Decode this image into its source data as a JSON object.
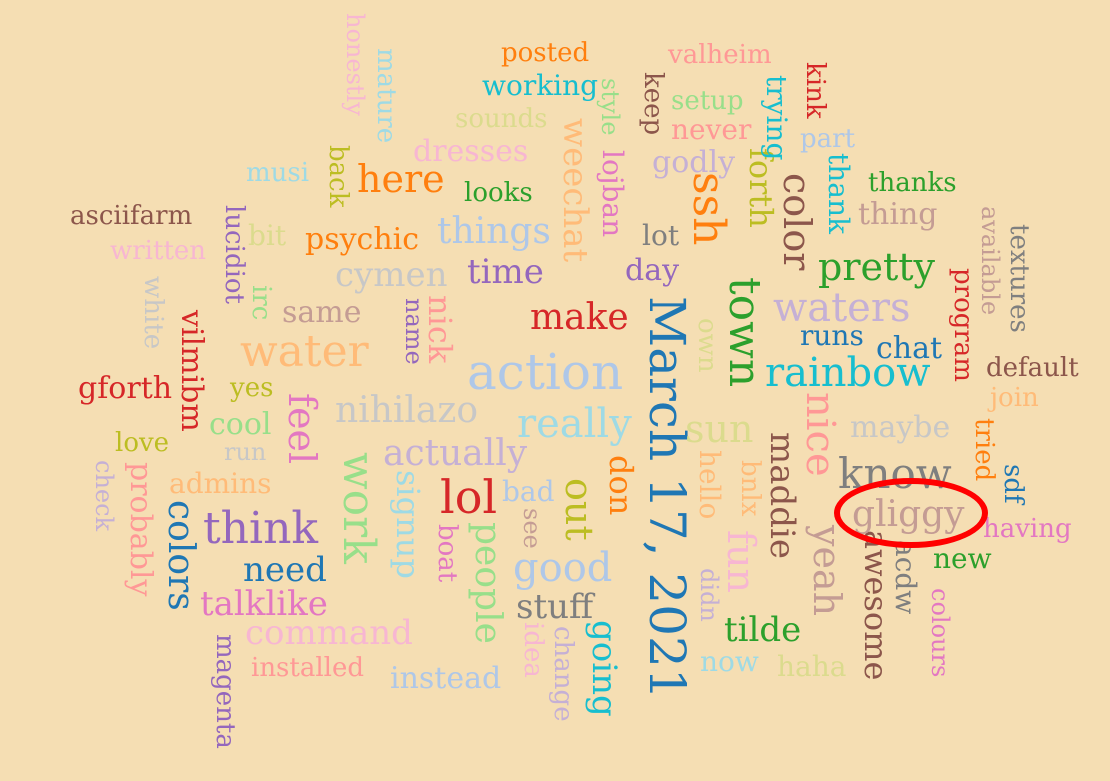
{
  "words": [
    {
      "id": "march-17-2021",
      "text": "March 17, 2021",
      "color": "#1f77b4"
    },
    {
      "id": "action",
      "text": "action",
      "color": "#aec7e8"
    },
    {
      "id": "water",
      "text": "water",
      "color": "#ffbb78"
    },
    {
      "id": "town",
      "text": "town",
      "color": "#2ca02c"
    },
    {
      "id": "rainbow",
      "text": "rainbow",
      "color": "#17becf"
    },
    {
      "id": "waters",
      "text": "waters",
      "color": "#c5b0d5"
    },
    {
      "id": "lol",
      "text": "lol",
      "color": "#d62728"
    },
    {
      "id": "think",
      "text": "think",
      "color": "#9467bd"
    },
    {
      "id": "nihilazo",
      "text": "nihilazo",
      "color": "#c7c7c7"
    },
    {
      "id": "really",
      "text": "really",
      "color": "#9edae5"
    },
    {
      "id": "work",
      "text": "work",
      "color": "#98df8a"
    },
    {
      "id": "nice",
      "text": "nice",
      "color": "#ff9896"
    },
    {
      "id": "know",
      "text": "know",
      "color": "#7f7f7f"
    },
    {
      "id": "ssh",
      "text": "ssh",
      "color": "#ff7f0e"
    },
    {
      "id": "color",
      "text": "color",
      "color": "#8c564b"
    },
    {
      "id": "pretty",
      "text": "pretty",
      "color": "#2ca02c"
    },
    {
      "id": "colors",
      "text": "colors",
      "color": "#1f77b4"
    },
    {
      "id": "good",
      "text": "good",
      "color": "#aec7e8"
    },
    {
      "id": "make",
      "text": "make",
      "color": "#d62728"
    },
    {
      "id": "time",
      "text": "time",
      "color": "#9467bd"
    },
    {
      "id": "here",
      "text": "here",
      "color": "#ff7f0e"
    },
    {
      "id": "yeah",
      "text": "yeah",
      "color": "#c49c94"
    },
    {
      "id": "weechat",
      "text": "weechat",
      "color": "#ffbb78"
    },
    {
      "id": "feel",
      "text": "feel",
      "color": "#e377c2"
    },
    {
      "id": "actually",
      "text": "actually",
      "color": "#c5b0d5"
    },
    {
      "id": "things",
      "text": "things",
      "color": "#aec7e8"
    },
    {
      "id": "cymen",
      "text": "cymen",
      "color": "#c7c7c7"
    },
    {
      "id": "sun",
      "text": "sun",
      "color": "#dbdb8d"
    },
    {
      "id": "maddie",
      "text": "maddie",
      "color": "#8c564b"
    },
    {
      "id": "forth",
      "text": "forth",
      "color": "#bcbd22"
    },
    {
      "id": "out",
      "text": "out",
      "color": "#bcbd22"
    },
    {
      "id": "command",
      "text": "command",
      "color": "#f7b6d2"
    },
    {
      "id": "talklike",
      "text": "talklike",
      "color": "#e377c2"
    },
    {
      "id": "need",
      "text": "need",
      "color": "#1f77b4"
    },
    {
      "id": "stuff",
      "text": "stuff",
      "color": "#7f7f7f"
    },
    {
      "id": "people",
      "text": "people",
      "color": "#98df8a"
    },
    {
      "id": "fun",
      "text": "fun",
      "color": "#f7b6d2"
    },
    {
      "id": "tilde",
      "text": "tilde",
      "color": "#2ca02c"
    },
    {
      "id": "signup",
      "text": "signup",
      "color": "#9edae5"
    },
    {
      "id": "going",
      "text": "going",
      "color": "#17becf"
    },
    {
      "id": "awesome",
      "text": "awesome",
      "color": "#8c564b"
    },
    {
      "id": "gliggy",
      "text": "gliggy",
      "color": "#c49c94"
    },
    {
      "id": "nick",
      "text": "nick",
      "color": "#ff9896"
    },
    {
      "id": "don",
      "text": "don",
      "color": "#ff7f0e"
    },
    {
      "id": "vilmibm",
      "text": "vilmibm",
      "color": "#d62728"
    },
    {
      "id": "gforth",
      "text": "gforth",
      "color": "#d62728"
    },
    {
      "id": "probably",
      "text": "probably",
      "color": "#ff9896"
    },
    {
      "id": "psychic",
      "text": "psychic",
      "color": "#ff7f0e"
    },
    {
      "id": "dresses",
      "text": "dresses",
      "color": "#f7b6d2"
    },
    {
      "id": "godly",
      "text": "godly",
      "color": "#c5b0d5"
    },
    {
      "id": "same",
      "text": "same",
      "color": "#c49c94"
    },
    {
      "id": "cool",
      "text": "cool",
      "color": "#98df8a"
    },
    {
      "id": "maybe",
      "text": "maybe",
      "color": "#c7c7c7"
    },
    {
      "id": "chat",
      "text": "chat",
      "color": "#1f77b4"
    },
    {
      "id": "runs",
      "text": "runs",
      "color": "#1f77b4"
    },
    {
      "id": "hello",
      "text": "hello",
      "color": "#ffbb78"
    },
    {
      "id": "lojban",
      "text": "lojban",
      "color": "#e377c2"
    },
    {
      "id": "day",
      "text": "day",
      "color": "#9467bd"
    },
    {
      "id": "lot",
      "text": "lot",
      "color": "#7f7f7f"
    },
    {
      "id": "thing",
      "text": "thing",
      "color": "#c49c94"
    },
    {
      "id": "thank",
      "text": "thank",
      "color": "#17becf"
    },
    {
      "id": "trying",
      "text": "trying",
      "color": "#17becf"
    },
    {
      "id": "instead",
      "text": "instead",
      "color": "#aec7e8"
    },
    {
      "id": "asciifarm",
      "text": "asciifarm",
      "color": "#8c564b"
    },
    {
      "id": "lucidiot",
      "text": "lucidiot",
      "color": "#9467bd"
    },
    {
      "id": "acdw",
      "text": "acdw",
      "color": "#7f7f7f"
    },
    {
      "id": "thanks",
      "text": "thanks",
      "color": "#2ca02c"
    },
    {
      "id": "default",
      "text": "default",
      "color": "#8c564b"
    },
    {
      "id": "program",
      "text": "program",
      "color": "#d62728"
    },
    {
      "id": "tried",
      "text": "tried",
      "color": "#ff7f0e"
    },
    {
      "id": "new",
      "text": "new",
      "color": "#2ca02c"
    },
    {
      "id": "having",
      "text": "having",
      "color": "#e377c2"
    },
    {
      "id": "textures",
      "text": "textures",
      "color": "#7f7f7f"
    },
    {
      "id": "available",
      "text": "available",
      "color": "#c49c94"
    },
    {
      "id": "posted",
      "text": "posted",
      "color": "#ff7f0e"
    },
    {
      "id": "working",
      "text": "working",
      "color": "#17becf"
    },
    {
      "id": "valheim",
      "text": "valheim",
      "color": "#ff9896"
    },
    {
      "id": "keep",
      "text": "keep",
      "color": "#8c564b"
    },
    {
      "id": "setup",
      "text": "setup",
      "color": "#98df8a"
    },
    {
      "id": "never",
      "text": "never",
      "color": "#ff9896"
    },
    {
      "id": "kink",
      "text": "kink",
      "color": "#d62728"
    },
    {
      "id": "part",
      "text": "part",
      "color": "#aec7e8"
    },
    {
      "id": "sounds",
      "text": "sounds",
      "color": "#dbdb8d"
    },
    {
      "id": "style",
      "text": "style",
      "color": "#98df8a"
    },
    {
      "id": "looks",
      "text": "looks",
      "color": "#2ca02c"
    },
    {
      "id": "musi",
      "text": "musi",
      "color": "#9edae5"
    },
    {
      "id": "back",
      "text": "back",
      "color": "#bcbd22"
    },
    {
      "id": "mature",
      "text": "mature",
      "color": "#9edae5"
    },
    {
      "id": "honestly",
      "text": "honestly",
      "color": "#f7b6d2"
    },
    {
      "id": "written",
      "text": "written",
      "color": "#f7b6d2"
    },
    {
      "id": "bit",
      "text": "bit",
      "color": "#dbdb8d"
    },
    {
      "id": "white",
      "text": "white",
      "color": "#c7c7c7"
    },
    {
      "id": "irc",
      "text": "irc",
      "color": "#98df8a"
    },
    {
      "id": "name",
      "text": "name",
      "color": "#9467bd"
    },
    {
      "id": "yes",
      "text": "yes",
      "color": "#bcbd22"
    },
    {
      "id": "love",
      "text": "love",
      "color": "#bcbd22"
    },
    {
      "id": "run",
      "text": "run",
      "color": "#c7c7c7"
    },
    {
      "id": "admins",
      "text": "admins",
      "color": "#ffbb78"
    },
    {
      "id": "check",
      "text": "check",
      "color": "#c5b0d5"
    },
    {
      "id": "magenta",
      "text": "magenta",
      "color": "#9467bd"
    },
    {
      "id": "installed",
      "text": "installed",
      "color": "#ff9896"
    },
    {
      "id": "bad",
      "text": "bad",
      "color": "#aec7e8"
    },
    {
      "id": "see",
      "text": "see",
      "color": "#c49c94"
    },
    {
      "id": "boat",
      "text": "boat",
      "color": "#e377c2"
    },
    {
      "id": "idea",
      "text": "idea",
      "color": "#f7b6d2"
    },
    {
      "id": "change",
      "text": "change",
      "color": "#c5b0d5"
    },
    {
      "id": "didn",
      "text": "didn",
      "color": "#c5b0d5"
    },
    {
      "id": "now",
      "text": "now",
      "color": "#9edae5"
    },
    {
      "id": "haha",
      "text": "haha",
      "color": "#dbdb8d"
    },
    {
      "id": "bnlx",
      "text": "bnlx",
      "color": "#ffbb78"
    },
    {
      "id": "own",
      "text": "own",
      "color": "#dbdb8d"
    },
    {
      "id": "sdf",
      "text": "sdf",
      "color": "#1f77b4"
    },
    {
      "id": "join",
      "text": "join",
      "color": "#ffbb78"
    },
    {
      "id": "colours",
      "text": "colours",
      "color": "#e377c2"
    }
  ],
  "highlight": {
    "target": "gliggy",
    "color": "#ff0000"
  }
}
